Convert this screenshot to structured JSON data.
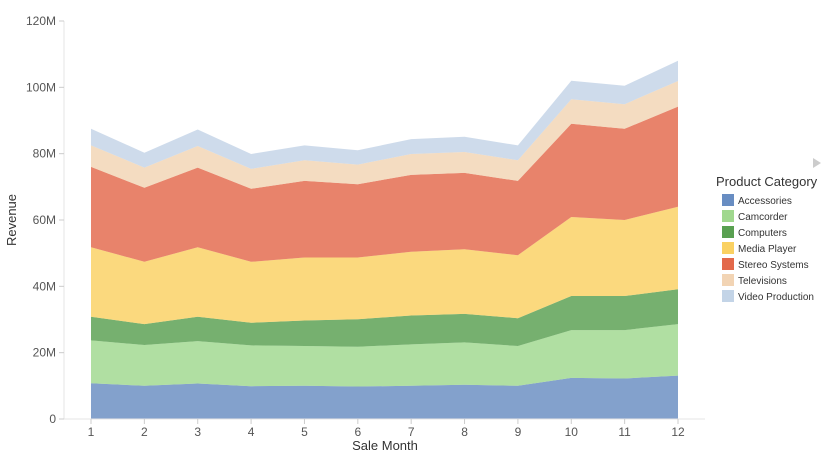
{
  "chart_data": {
    "type": "area",
    "stacked": true,
    "xlabel": "Sale Month",
    "ylabel": "Revenue",
    "x": [
      1,
      2,
      3,
      4,
      5,
      6,
      7,
      8,
      9,
      10,
      11,
      12
    ],
    "ylim": [
      0,
      120
    ],
    "yticks": [
      "0",
      "20M",
      "40M",
      "60M",
      "80M",
      "100M",
      "120M"
    ],
    "grid": false,
    "legend": {
      "title": "Product Category",
      "placement": "right"
    },
    "series": [
      {
        "name": "Accessories",
        "color": "#4e79b7",
        "values": [
          10.8,
          10.0,
          10.7,
          9.9,
          10.0,
          9.8,
          10.0,
          10.3,
          10.0,
          12.4,
          12.2,
          13.1
        ]
      },
      {
        "name": "Camcorder",
        "color": "#8fd17a",
        "values": [
          12.9,
          12.3,
          12.8,
          12.3,
          12.0,
          12.0,
          12.5,
          12.8,
          12.0,
          14.4,
          14.6,
          15.5
        ]
      },
      {
        "name": "Computers",
        "color": "#3c8f32",
        "values": [
          7.1,
          6.3,
          7.3,
          6.8,
          7.7,
          8.3,
          8.7,
          8.6,
          8.4,
          10.3,
          10.3,
          10.5
        ]
      },
      {
        "name": "Media Player",
        "color": "#f9c947",
        "values": [
          21.0,
          18.8,
          21.0,
          18.4,
          19.0,
          18.6,
          19.2,
          19.5,
          19.0,
          23.8,
          22.9,
          24.9
        ]
      },
      {
        "name": "Stereo Systems",
        "color": "#de4f2c",
        "values": [
          24.2,
          22.3,
          24.0,
          22.0,
          23.1,
          22.1,
          23.2,
          23.0,
          22.4,
          28.1,
          27.5,
          30.2
        ]
      },
      {
        "name": "Televisions",
        "color": "#f0cda7",
        "values": [
          6.5,
          6.1,
          6.5,
          6.0,
          6.2,
          5.9,
          6.3,
          6.3,
          6.2,
          7.4,
          7.4,
          7.7
        ]
      },
      {
        "name": "Video Production",
        "color": "#b9cce3",
        "values": [
          5.0,
          4.5,
          5.0,
          4.5,
          4.5,
          4.3,
          4.5,
          4.6,
          4.5,
          5.6,
          5.6,
          6.1
        ]
      }
    ]
  }
}
